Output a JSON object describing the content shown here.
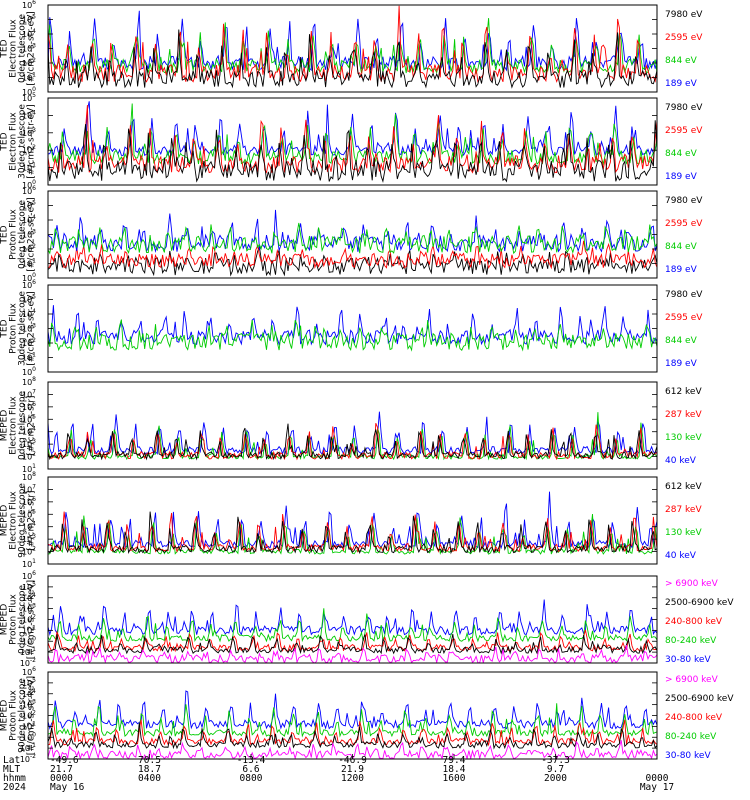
{
  "chart_data": {
    "type": "line",
    "panels": [
      {
        "ylabel": [
          "TED",
          "Electron Flux",
          "0deg telescope",
          "[#/cm2-s-str-eV]"
        ],
        "ylim": [
          1,
          1000000
        ],
        "legend": [
          {
            "label": "7980 eV",
            "color": "#000000"
          },
          {
            "label": "2595 eV",
            "color": "#ff0000"
          },
          {
            "label": "844 eV",
            "color": "#00cc00"
          },
          {
            "label": "189 eV",
            "color": "#0000ff"
          }
        ],
        "series": [
          {
            "color": "#0000ff",
            "base": 2.0,
            "amp": 3.4,
            "noise": 0.5
          },
          {
            "color": "#00cc00",
            "base": 1.8,
            "amp": 3.0,
            "noise": 0.5
          },
          {
            "color": "#ff0000",
            "base": 1.3,
            "amp": 3.6,
            "noise": 0.6
          },
          {
            "color": "#000000",
            "base": 0.9,
            "amp": 3.0,
            "noise": 0.6
          }
        ]
      },
      {
        "ylabel": [
          "TED",
          "Electron Flux",
          "30deg telescope",
          "[#/cm2-s-str-eV]"
        ],
        "ylim": [
          1,
          100000
        ],
        "legend": [
          {
            "label": "7980 eV",
            "color": "#000000"
          },
          {
            "label": "2595 eV",
            "color": "#ff0000"
          },
          {
            "label": "844 eV",
            "color": "#00cc00"
          },
          {
            "label": "189 eV",
            "color": "#0000ff"
          }
        ],
        "series": [
          {
            "color": "#0000ff",
            "base": 2.0,
            "amp": 2.6,
            "noise": 0.3
          },
          {
            "color": "#00cc00",
            "base": 1.6,
            "amp": 2.4,
            "noise": 0.4
          },
          {
            "color": "#ff0000",
            "base": 1.2,
            "amp": 2.8,
            "noise": 0.5
          },
          {
            "color": "#000000",
            "base": 0.8,
            "amp": 2.6,
            "noise": 0.6
          }
        ]
      },
      {
        "ylabel": [
          "TED",
          "Proton Flux",
          "0deg telescope",
          "[#/cm2-s-str-eV]"
        ],
        "ylim": [
          1,
          1000000
        ],
        "legend": [
          {
            "label": "7980 eV",
            "color": "#000000"
          },
          {
            "label": "2595 eV",
            "color": "#ff0000"
          },
          {
            "label": "844 eV",
            "color": "#00cc00"
          },
          {
            "label": "189 eV",
            "color": "#0000ff"
          }
        ],
        "series": [
          {
            "color": "#000000",
            "base": 0.8,
            "amp": 1.0,
            "noise": 0.6
          },
          {
            "color": "#ff0000",
            "base": 1.2,
            "amp": 1.0,
            "noise": 0.5
          },
          {
            "color": "#0000ff",
            "base": 2.4,
            "amp": 1.8,
            "noise": 0.6
          },
          {
            "color": "#00cc00",
            "base": 2.3,
            "amp": 1.4,
            "noise": 0.6
          }
        ]
      },
      {
        "ylabel": [
          "TED",
          "Proton Flux",
          "30deg telescope",
          "[#/cm2-s-str-eV]"
        ],
        "ylim": [
          1,
          1000000
        ],
        "legend": [
          {
            "label": "7980 eV",
            "color": "#000000"
          },
          {
            "label": "2595 eV",
            "color": "#ff0000"
          },
          {
            "label": "844 eV",
            "color": "#00cc00"
          },
          {
            "label": "189 eV",
            "color": "#0000ff"
          }
        ],
        "series": [
          {
            "color": "#0000ff",
            "base": 2.4,
            "amp": 2.0,
            "noise": 0.5
          },
          {
            "color": "#00cc00",
            "base": 2.1,
            "amp": 1.4,
            "noise": 0.6
          }
        ]
      },
      {
        "ylabel": [
          "MEPED",
          "Electron Flux",
          "0deg telescope",
          "[#/cm2-s-str]"
        ],
        "ylim": [
          10,
          100000000
        ],
        "legend": [
          {
            "label": "612 keV",
            "color": "#000000"
          },
          {
            "label": "287 keV",
            "color": "#ff0000"
          },
          {
            "label": "130 keV",
            "color": "#00cc00"
          },
          {
            "label": "40 keV",
            "color": "#0000ff"
          }
        ],
        "series": [
          {
            "color": "#0000ff",
            "base": 2.5,
            "amp": 3.0,
            "noise": 0.3
          },
          {
            "color": "#00cc00",
            "base": 2.0,
            "amp": 2.8,
            "noise": 0.2
          },
          {
            "color": "#ff0000",
            "base": 2.1,
            "amp": 2.6,
            "noise": 0.3
          },
          {
            "color": "#000000",
            "base": 2.1,
            "amp": 2.4,
            "noise": 0.3
          }
        ]
      },
      {
        "ylabel": [
          "MEPED",
          "Electron Flux",
          "90deg telescope",
          "[#/cm2-s-str]"
        ],
        "ylim": [
          10,
          100000000
        ],
        "legend": [
          {
            "label": "612 keV",
            "color": "#000000"
          },
          {
            "label": "287 keV",
            "color": "#ff0000"
          },
          {
            "label": "130 keV",
            "color": "#00cc00"
          },
          {
            "label": "40 keV",
            "color": "#0000ff"
          }
        ],
        "series": [
          {
            "color": "#0000ff",
            "base": 2.6,
            "amp": 3.2,
            "noise": 0.3
          },
          {
            "color": "#00cc00",
            "base": 2.0,
            "amp": 3.0,
            "noise": 0.2
          },
          {
            "color": "#ff0000",
            "base": 2.3,
            "amp": 3.0,
            "noise": 0.3
          },
          {
            "color": "#000000",
            "base": 2.2,
            "amp": 2.8,
            "noise": 0.3
          }
        ]
      },
      {
        "ylabel": [
          "MEPED",
          "Proton Flux",
          "0deg telescope",
          "[#/cm2-s-str-keV]"
        ],
        "ylim": [
          0.01,
          1000000
        ],
        "legend": [
          {
            "label": "> 6900 keV",
            "color": "#ff00ff"
          },
          {
            "label": "2500-6900 keV",
            "color": "#000000"
          },
          {
            "label": "240-800 keV",
            "color": "#ff0000"
          },
          {
            "label": "80-240 keV",
            "color": "#00cc00"
          },
          {
            "label": "30-80 keV",
            "color": "#0000ff"
          }
        ],
        "series": [
          {
            "color": "#0000ff",
            "base": 1.0,
            "amp": 2.6,
            "noise": 0.4
          },
          {
            "color": "#00cc00",
            "base": 0.3,
            "amp": 2.2,
            "noise": 0.3
          },
          {
            "color": "#ff0000",
            "base": -0.6,
            "amp": 1.6,
            "noise": 0.3
          },
          {
            "color": "#000000",
            "base": -0.8,
            "amp": 1.4,
            "noise": 0.3
          },
          {
            "color": "#ff00ff",
            "base": -1.6,
            "amp": 1.0,
            "noise": 0.4
          }
        ]
      },
      {
        "ylabel": [
          "MEPED",
          "Proton Flux",
          "90deg telescope",
          "[#/cm2-s-str-keV]"
        ],
        "ylim": [
          0.01,
          1000000
        ],
        "legend": [
          {
            "label": "> 6900 keV",
            "color": "#ff00ff"
          },
          {
            "label": "2500-6900 keV",
            "color": "#000000"
          },
          {
            "label": "240-800 keV",
            "color": "#ff0000"
          },
          {
            "label": "80-240 keV",
            "color": "#00cc00"
          },
          {
            "label": "30-80 keV",
            "color": "#0000ff"
          }
        ],
        "series": [
          {
            "color": "#0000ff",
            "base": 1.2,
            "amp": 2.8,
            "noise": 0.4
          },
          {
            "color": "#00cc00",
            "base": 0.4,
            "amp": 2.6,
            "noise": 0.3
          },
          {
            "color": "#ff0000",
            "base": -0.4,
            "amp": 2.0,
            "noise": 0.3
          },
          {
            "color": "#000000",
            "base": -0.7,
            "amp": 1.6,
            "noise": 0.3
          },
          {
            "color": "#ff00ff",
            "base": -1.6,
            "amp": 1.0,
            "noise": 0.4
          }
        ]
      }
    ],
    "x_axis": {
      "rows": [
        "Lat",
        "MLT",
        "hhmm",
        "2024"
      ],
      "ticks": [
        {
          "lat": "-49.6",
          "mlt": "21.7",
          "hhmm": "0000",
          "date": "May 16"
        },
        {
          "lat": "70.5",
          "mlt": "18.7",
          "hhmm": "0400",
          "date": ""
        },
        {
          "lat": "-13.4",
          "mlt": "6.6",
          "hhmm": "0800",
          "date": ""
        },
        {
          "lat": "-46.9",
          "mlt": "21.9",
          "hhmm": "1200",
          "date": ""
        },
        {
          "lat": "79.4",
          "mlt": "18.4",
          "hhmm": "1600",
          "date": ""
        },
        {
          "lat": "-37.3",
          "mlt": "9.7",
          "hhmm": "2000",
          "date": ""
        },
        {
          "lat": "",
          "mlt": "",
          "hhmm": "0000",
          "date": "May 17"
        }
      ]
    }
  }
}
